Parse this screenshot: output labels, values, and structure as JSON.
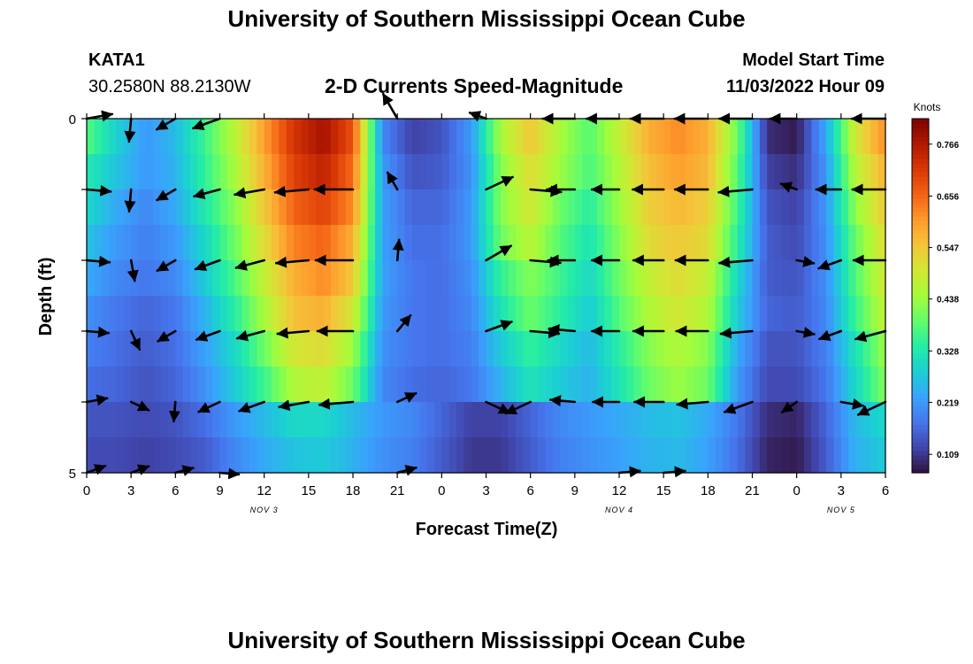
{
  "page": {
    "top_title": "University of Southern Mississippi Ocean Cube",
    "bottom_title": "University of Southern Mississippi Ocean Cube",
    "station_id": "KATA1",
    "station_coords": "30.2580N  88.2130W",
    "model_start_label": "Model Start Time",
    "model_start_value": "11/03/2022 Hour 09"
  },
  "chart_data": {
    "type": "heatmap",
    "title": "2-D Currents Speed-Magnitude",
    "xlabel": "Forecast Time(Z)",
    "ylabel": "Depth (ft)",
    "colorbar_label": "Knots",
    "colorbar_ticks": [
      "0.109",
      "0.219",
      "0.328",
      "0.438",
      "0.547",
      "0.656",
      "0.766"
    ],
    "colorbar_values": [
      0.109,
      0.219,
      0.328,
      0.438,
      0.547,
      0.656,
      0.766
    ],
    "value_range": [
      0.07,
      0.82
    ],
    "palette": [
      "#30123b",
      "#4145ab",
      "#4675ed",
      "#39a2fc",
      "#1bcfd4",
      "#24eca6",
      "#61fc6c",
      "#a4fc3b",
      "#d1e834",
      "#f3c63a",
      "#fe9b2d",
      "#f36315",
      "#d93806",
      "#b11901",
      "#7a0403"
    ],
    "x_ticks": [
      "0",
      "3",
      "6",
      "9",
      "12",
      "15",
      "18",
      "21",
      "0",
      "3",
      "6",
      "9",
      "12",
      "15",
      "18",
      "21",
      "0",
      "3",
      "6"
    ],
    "x_range_hours": [
      0,
      54
    ],
    "day_labels": [
      {
        "label": "NOV 3",
        "hour": 12
      },
      {
        "label": "NOV 4",
        "hour": 36
      },
      {
        "label": "NOV 5",
        "hour": 51
      }
    ],
    "y_ticks": [
      "0",
      "5"
    ],
    "y_range_ft": [
      0,
      5
    ],
    "depth_rows_ft": [
      0.25,
      0.75,
      1.25,
      1.75,
      2.25,
      2.75,
      3.25,
      3.75,
      4.25,
      4.75
    ],
    "time_hours": [
      0,
      2,
      4,
      6,
      8,
      10,
      12,
      14,
      16,
      18,
      20,
      22,
      24,
      26,
      28,
      30,
      32,
      34,
      36,
      38,
      40,
      42,
      44,
      46,
      48,
      50,
      52,
      54
    ],
    "speed_knots": [
      [
        0.38,
        0.29,
        0.22,
        0.26,
        0.36,
        0.47,
        0.6,
        0.72,
        0.78,
        0.68,
        0.2,
        0.12,
        0.14,
        0.22,
        0.45,
        0.55,
        0.45,
        0.38,
        0.48,
        0.58,
        0.62,
        0.58,
        0.4,
        0.1,
        0.08,
        0.24,
        0.5,
        0.62
      ],
      [
        0.33,
        0.27,
        0.22,
        0.25,
        0.35,
        0.45,
        0.58,
        0.7,
        0.75,
        0.65,
        0.22,
        0.14,
        0.15,
        0.21,
        0.42,
        0.52,
        0.44,
        0.37,
        0.46,
        0.56,
        0.6,
        0.57,
        0.38,
        0.12,
        0.1,
        0.22,
        0.47,
        0.58
      ],
      [
        0.3,
        0.24,
        0.2,
        0.24,
        0.33,
        0.42,
        0.55,
        0.66,
        0.7,
        0.62,
        0.23,
        0.16,
        0.16,
        0.22,
        0.42,
        0.5,
        0.4,
        0.34,
        0.44,
        0.54,
        0.57,
        0.54,
        0.36,
        0.14,
        0.12,
        0.22,
        0.43,
        0.55
      ],
      [
        0.27,
        0.22,
        0.19,
        0.22,
        0.3,
        0.4,
        0.52,
        0.63,
        0.66,
        0.58,
        0.23,
        0.17,
        0.17,
        0.22,
        0.4,
        0.47,
        0.38,
        0.32,
        0.42,
        0.52,
        0.55,
        0.52,
        0.34,
        0.15,
        0.13,
        0.21,
        0.4,
        0.52
      ],
      [
        0.24,
        0.2,
        0.18,
        0.2,
        0.28,
        0.37,
        0.48,
        0.58,
        0.62,
        0.55,
        0.23,
        0.18,
        0.17,
        0.21,
        0.35,
        0.42,
        0.36,
        0.3,
        0.4,
        0.48,
        0.52,
        0.48,
        0.3,
        0.15,
        0.14,
        0.21,
        0.38,
        0.5
      ],
      [
        0.21,
        0.18,
        0.16,
        0.18,
        0.25,
        0.34,
        0.45,
        0.56,
        0.58,
        0.5,
        0.22,
        0.18,
        0.17,
        0.2,
        0.32,
        0.4,
        0.34,
        0.28,
        0.38,
        0.46,
        0.5,
        0.46,
        0.28,
        0.16,
        0.15,
        0.2,
        0.36,
        0.48
      ],
      [
        0.19,
        0.17,
        0.15,
        0.17,
        0.23,
        0.3,
        0.4,
        0.5,
        0.52,
        0.44,
        0.21,
        0.18,
        0.17,
        0.19,
        0.28,
        0.35,
        0.3,
        0.26,
        0.34,
        0.42,
        0.46,
        0.42,
        0.24,
        0.14,
        0.14,
        0.19,
        0.32,
        0.44
      ],
      [
        0.17,
        0.16,
        0.14,
        0.16,
        0.21,
        0.28,
        0.36,
        0.46,
        0.48,
        0.4,
        0.2,
        0.17,
        0.16,
        0.18,
        0.25,
        0.32,
        0.28,
        0.25,
        0.32,
        0.4,
        0.44,
        0.4,
        0.22,
        0.13,
        0.13,
        0.18,
        0.3,
        0.42
      ],
      [
        0.14,
        0.14,
        0.13,
        0.14,
        0.17,
        0.22,
        0.26,
        0.3,
        0.3,
        0.26,
        0.22,
        0.2,
        0.16,
        0.12,
        0.12,
        0.16,
        0.2,
        0.22,
        0.24,
        0.26,
        0.27,
        0.24,
        0.18,
        0.1,
        0.09,
        0.16,
        0.26,
        0.3
      ],
      [
        0.13,
        0.13,
        0.12,
        0.13,
        0.15,
        0.2,
        0.24,
        0.27,
        0.28,
        0.25,
        0.21,
        0.19,
        0.15,
        0.11,
        0.11,
        0.15,
        0.19,
        0.21,
        0.23,
        0.25,
        0.26,
        0.23,
        0.17,
        0.09,
        0.08,
        0.15,
        0.25,
        0.28
      ]
    ],
    "vector_depths_ft": [
      0,
      1,
      2,
      3,
      4,
      5
    ],
    "vector_times_hours": [
      0,
      3,
      6,
      9,
      12,
      15,
      18,
      21,
      24,
      27,
      30,
      33,
      36,
      39,
      42,
      45,
      48,
      51,
      54
    ],
    "vector_directions_deg": [
      [
        80,
        185,
        240,
        250,
        0,
        0,
        0,
        330,
        0,
        290,
        0,
        270,
        270,
        270,
        270,
        270,
        270,
        0,
        270
      ],
      [
        95,
        185,
        240,
        255,
        260,
        265,
        270,
        330,
        0,
        65,
        95,
        270,
        270,
        270,
        270,
        265,
        290,
        270,
        270
      ],
      [
        95,
        170,
        240,
        250,
        255,
        265,
        270,
        5,
        0,
        60,
        95,
        270,
        270,
        270,
        270,
        265,
        100,
        250,
        270
      ],
      [
        95,
        155,
        240,
        250,
        255,
        265,
        270,
        40,
        0,
        70,
        95,
        275,
        270,
        270,
        270,
        265,
        100,
        250,
        255
      ],
      [
        80,
        115,
        185,
        245,
        250,
        260,
        265,
        65,
        0,
        115,
        245,
        275,
        270,
        270,
        265,
        250,
        235,
        100,
        245
      ],
      [
        70,
        70,
        75,
        95,
        0,
        0,
        0,
        75,
        0,
        0,
        0,
        0,
        85,
        85,
        0,
        0,
        0,
        0,
        0
      ]
    ],
    "vector_speeds_knots": [
      [
        0.38,
        0.3,
        0.26,
        0.45,
        0,
        0,
        0,
        0.45,
        0,
        0.14,
        0,
        0.55,
        0.57,
        0.58,
        0.59,
        0.58,
        0.4,
        0,
        0.6
      ],
      [
        0.33,
        0.27,
        0.25,
        0.4,
        0.49,
        0.6,
        0.73,
        0.2,
        0,
        0.48,
        0.52,
        0.44,
        0.42,
        0.52,
        0.58,
        0.6,
        0.12,
        0.35,
        0.58
      ],
      [
        0.3,
        0.24,
        0.24,
        0.38,
        0.47,
        0.57,
        0.7,
        0.23,
        0,
        0.46,
        0.5,
        0.4,
        0.42,
        0.5,
        0.56,
        0.58,
        0.14,
        0.32,
        0.55
      ],
      [
        0.27,
        0.22,
        0.22,
        0.35,
        0.44,
        0.53,
        0.65,
        0.23,
        0,
        0.42,
        0.46,
        0.38,
        0.42,
        0.5,
        0.54,
        0.54,
        0.15,
        0.3,
        0.52
      ],
      [
        0.24,
        0.2,
        0.2,
        0.31,
        0.4,
        0.49,
        0.6,
        0.23,
        0,
        0.38,
        0.42,
        0.34,
        0.39,
        0.47,
        0.52,
        0.48,
        0.15,
        0.28,
        0.5
      ],
      [
        0.21,
        0.18,
        0.17,
        0.19,
        0,
        0,
        0,
        0.2,
        0,
        0,
        0,
        0,
        0.24,
        0.26,
        0,
        0,
        0,
        0,
        0
      ]
    ]
  }
}
